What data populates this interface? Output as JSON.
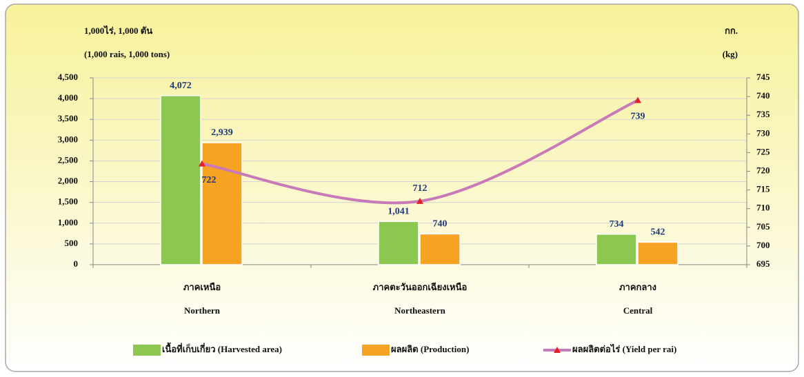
{
  "chart_data": {
    "type": "bar_line",
    "y_axis_label": [
      "1,000ไร่, 1,000 ตัน",
      "(1,000 rais, 1,000 tons)"
    ],
    "y2_axis_label": [
      "กก.",
      "(kg)"
    ],
    "categories": [
      [
        "ภาคเหนือ",
        "Northern"
      ],
      [
        "ภาคตะวันออกเฉียงเหนือ",
        "Northeastern"
      ],
      [
        "ภาคกลาง",
        "Central"
      ]
    ],
    "series": [
      {
        "name": "เนื้อที่เก็บเกี่ยว (Harvested area)",
        "color": "#8cc850",
        "type": "bar",
        "values": [
          4072,
          1041,
          734
        ],
        "value_labels": [
          "4,072",
          "1,041",
          "734"
        ]
      },
      {
        "name": "ผลผลิต (Production)",
        "color": "#f6a323",
        "type": "bar",
        "values": [
          2939,
          740,
          542
        ],
        "value_labels": [
          "2,939",
          "740",
          "542"
        ]
      },
      {
        "name": "ผลผลิตต่อไร่ (Yield per rai)",
        "color": "#c87ab8",
        "marker_color": "#e0202a",
        "type": "line",
        "axis": "y2",
        "values": [
          722,
          712,
          739
        ]
      }
    ],
    "ylim": [
      0,
      4500
    ],
    "yticks": [
      0,
      500,
      {
        "value": 1000,
        "label": "1,000"
      },
      {
        "value": 1500,
        "label": "1,500"
      },
      {
        "value": 2000,
        "label": "2,000"
      },
      {
        "value": 2500,
        "label": "2,500"
      },
      {
        "value": 3000,
        "label": "3,000"
      },
      {
        "value": 3500,
        "label": "3,500"
      },
      {
        "value": 4000,
        "label": "4,000"
      },
      {
        "value": 4500,
        "label": "4,500"
      }
    ],
    "y2lim": [
      695,
      745
    ],
    "y2ticks": [
      695,
      700,
      705,
      710,
      715,
      720,
      725,
      730,
      735,
      740,
      745
    ],
    "grid": true
  }
}
